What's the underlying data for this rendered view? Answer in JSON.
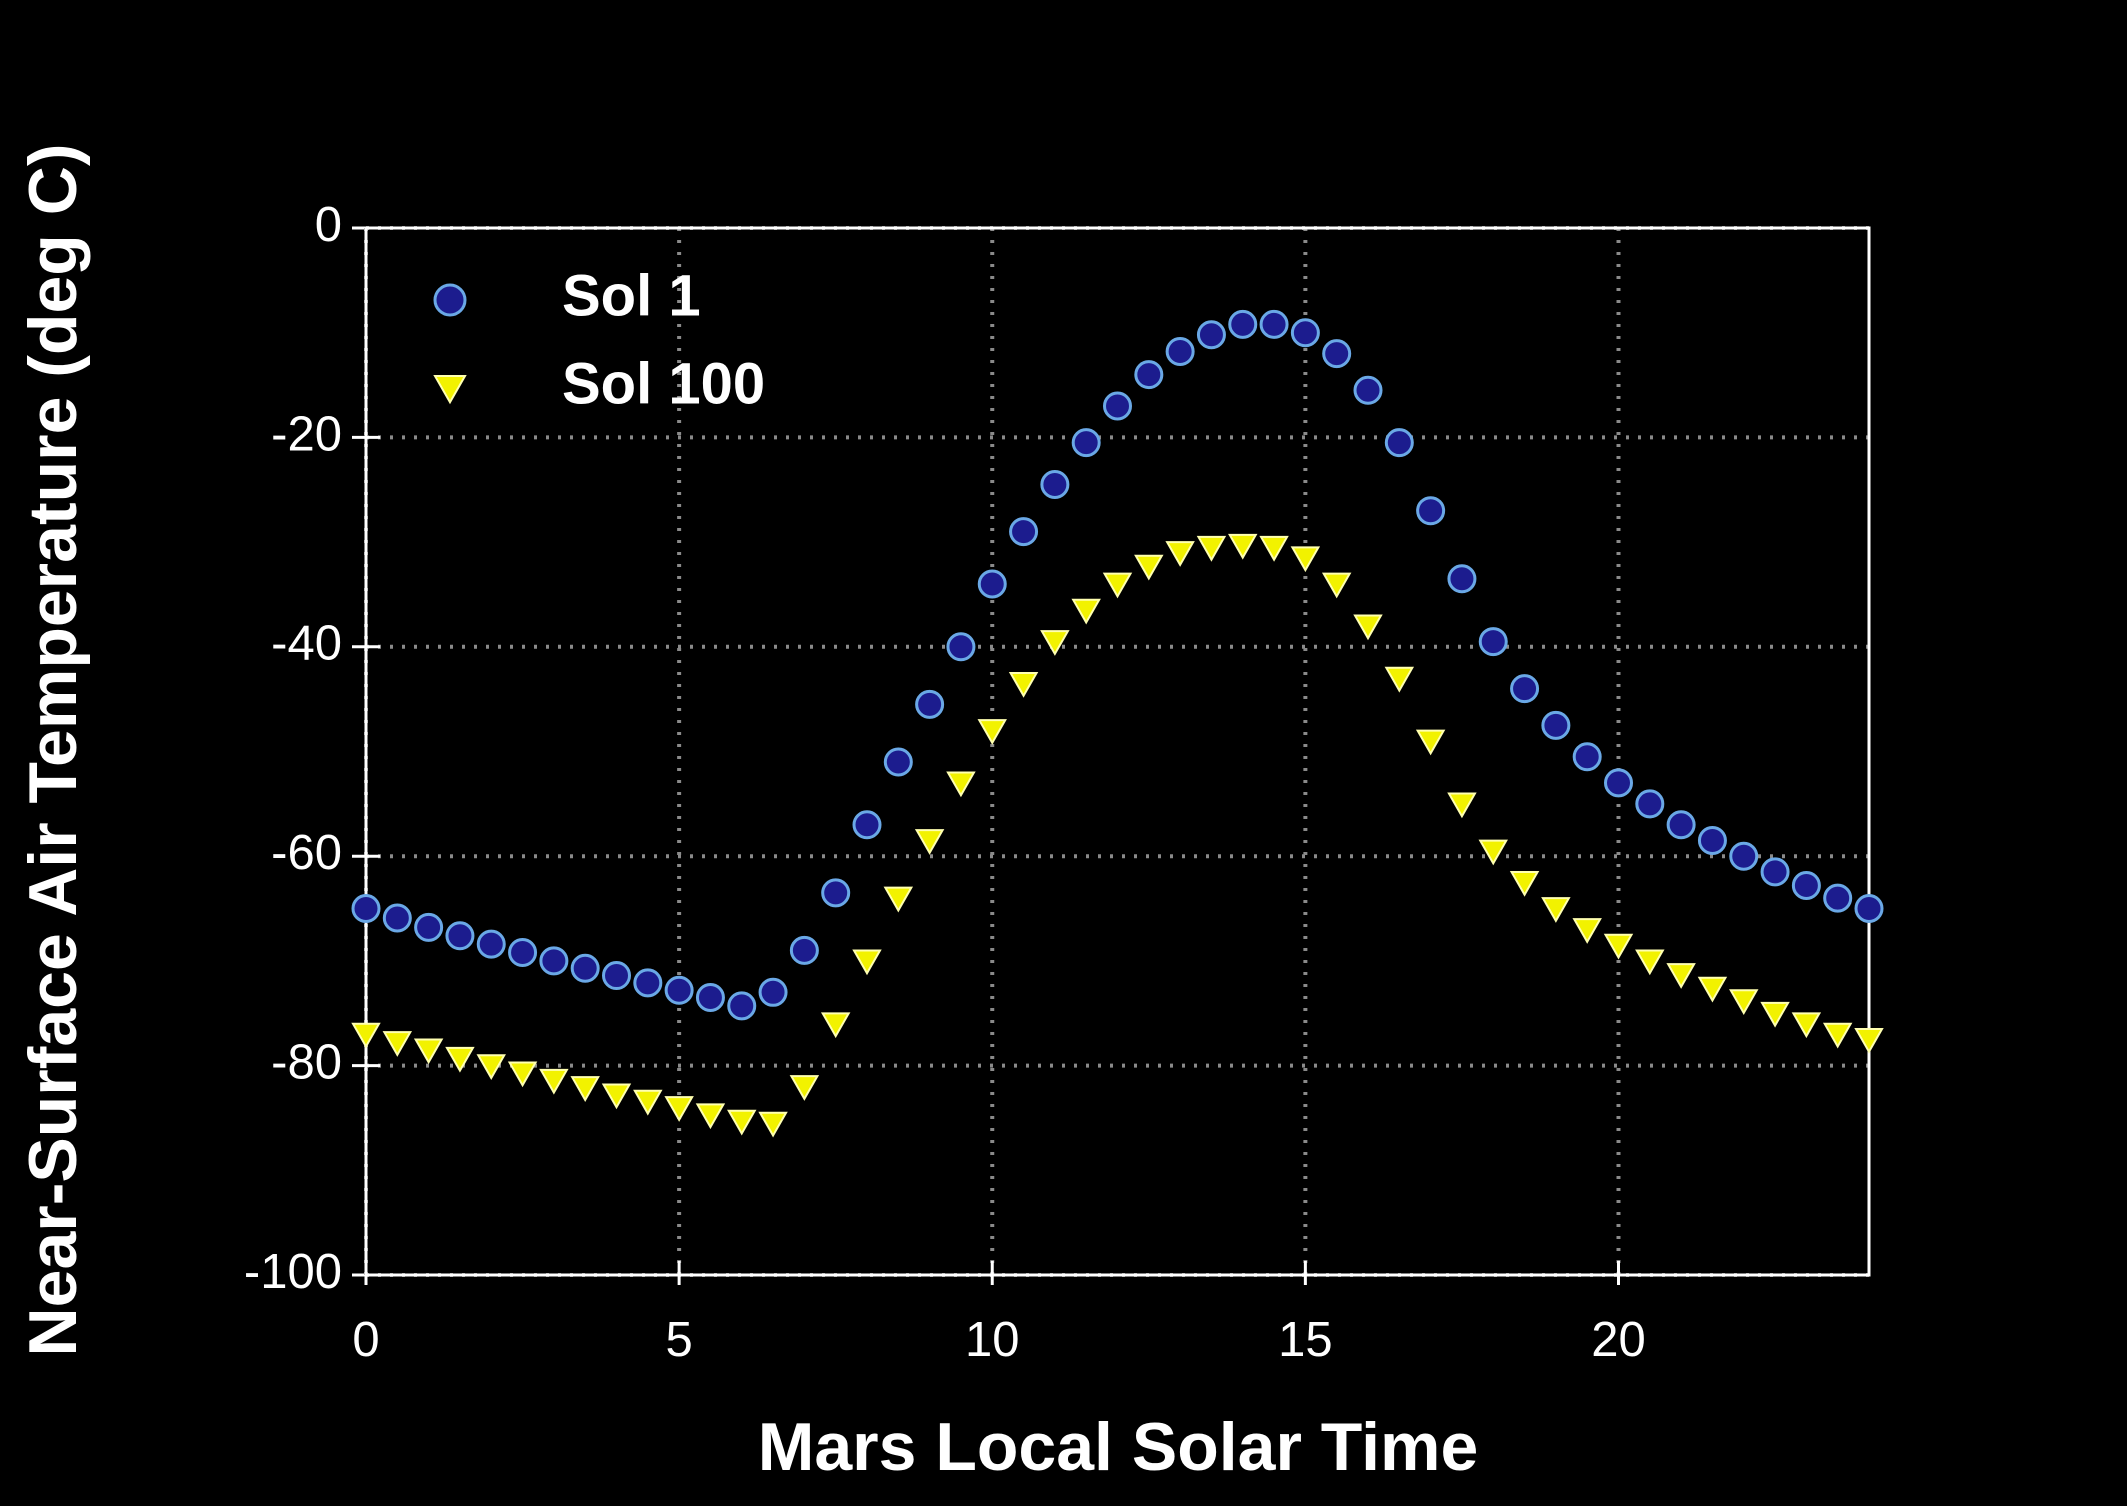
{
  "chart_data": {
    "type": "scatter",
    "x_label": "Mars Local Solar Time",
    "y_label": "Near-Surface Air Temperature  (deg C)",
    "x": [
      0,
      0.5,
      1,
      1.5,
      2,
      2.5,
      3,
      3.5,
      4,
      4.5,
      5,
      5.5,
      6,
      6.5,
      7,
      7.5,
      8,
      8.5,
      9,
      9.5,
      10,
      10.5,
      11,
      11.5,
      12,
      12.5,
      13,
      13.5,
      14,
      14.5,
      15,
      15.5,
      16,
      16.5,
      17,
      17.5,
      18,
      18.5,
      19,
      19.5,
      20,
      20.5,
      21,
      21.5,
      22,
      22.5,
      23,
      23.5,
      24
    ],
    "series": [
      {
        "name": "Sol 1",
        "marker": "circle",
        "color": "#1c1c8e",
        "edge_color": "#6aa8e6",
        "values": [
          -65,
          -65.9,
          -66.8,
          -67.6,
          -68.4,
          -69.2,
          -70,
          -70.7,
          -71.4,
          -72.1,
          -72.8,
          -73.5,
          -74.3,
          -73,
          -69,
          -63.5,
          -57,
          -51,
          -45.5,
          -40,
          -34,
          -29,
          -24.5,
          -20.5,
          -17,
          -14,
          -11.8,
          -10.2,
          -9.2,
          -9.2,
          -10,
          -12,
          -15.5,
          -20.5,
          -27,
          -33.5,
          -39.5,
          -44,
          -47.5,
          -50.5,
          -53,
          -55,
          -57,
          -58.5,
          -60,
          -61.5,
          -62.8,
          -64,
          -65
        ]
      },
      {
        "name": "Sol 100",
        "marker": "triangle-down",
        "color": "#f2f200",
        "edge_color": "#ffffb0",
        "values": [
          -77,
          -77.8,
          -78.5,
          -79.3,
          -80,
          -80.7,
          -81.4,
          -82.1,
          -82.8,
          -83.4,
          -84,
          -84.7,
          -85.3,
          -85.5,
          -82,
          -76,
          -70,
          -64,
          -58.5,
          -53,
          -48,
          -43.5,
          -39.5,
          -36.5,
          -34,
          -32.3,
          -31,
          -30.5,
          -30.3,
          -30.5,
          -31.5,
          -34,
          -38,
          -43,
          -49,
          -55,
          -59.5,
          -62.5,
          -65,
          -67,
          -68.5,
          -70,
          -71.3,
          -72.6,
          -73.8,
          -75,
          -76,
          -77,
          -77.5
        ]
      }
    ],
    "xlim": [
      0,
      24
    ],
    "xticks": [
      0,
      5,
      10,
      15,
      20
    ],
    "ylim": [
      -100,
      0
    ],
    "yticks": [
      -100,
      -80,
      -60,
      -40,
      -20,
      0
    ],
    "grid": true,
    "legend": "upper left"
  }
}
